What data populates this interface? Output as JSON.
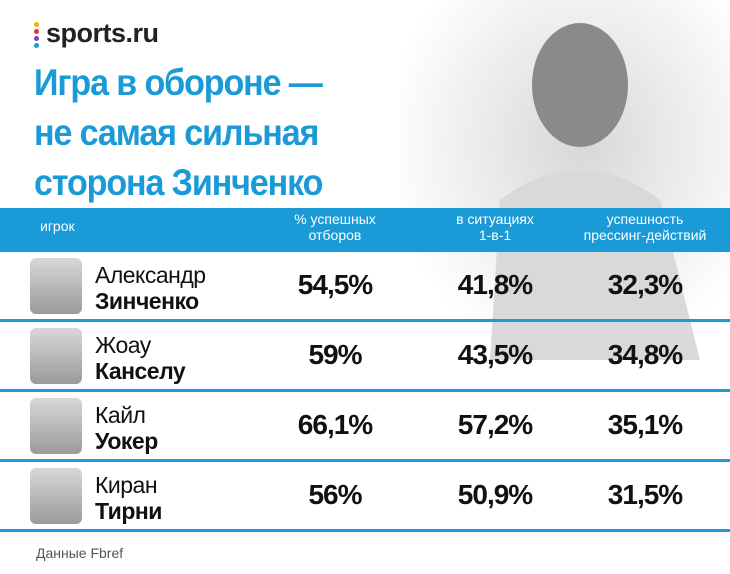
{
  "header": {
    "brand": "sports.ru",
    "title": [
      "Игра в обороне —",
      "не самая сильная",
      "сторона Зинченко"
    ]
  },
  "table": {
    "columns": [
      [
        "игрок"
      ],
      [
        "% успешных",
        "отборов"
      ],
      [
        "в ситуациях",
        "1-в-1"
      ],
      [
        "успешность",
        "прессинг-действий"
      ]
    ],
    "rows": [
      {
        "first": "Александр",
        "last": "Зинченко",
        "values": [
          "54,5%",
          "41,8%",
          "32,3%"
        ]
      },
      {
        "first": "Жоау",
        "last": "Канселу",
        "values": [
          "59%",
          "43,5%",
          "34,8%"
        ]
      },
      {
        "first": "Кайл",
        "last": "Уокер",
        "values": [
          "66,1%",
          "57,2%",
          "35,1%"
        ]
      },
      {
        "first": "Киран",
        "last": "Тирни",
        "values": [
          "56%",
          "50,9%",
          "31,5%"
        ]
      }
    ]
  },
  "footer": "Данные Fbref"
}
